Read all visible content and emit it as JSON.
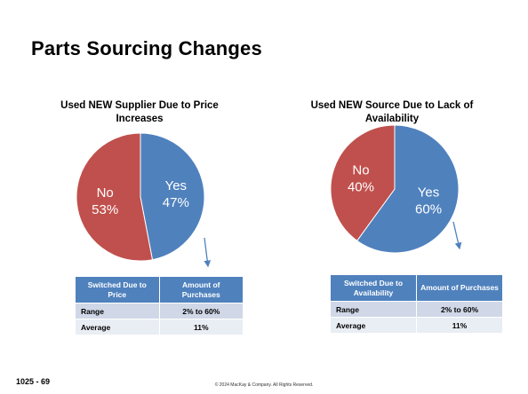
{
  "page": {
    "title": "Parts Sourcing Changes",
    "footer_left": "1025 -  69",
    "footer_center": "© 2024 MacKay & Company.  All Rights Reserved."
  },
  "colors": {
    "yes": "#4f81bd",
    "no": "#c0504d",
    "table_header": "#4f81bd"
  },
  "chart_data": [
    {
      "type": "pie",
      "title": "Used NEW Supplier Due to Price Increases",
      "slices": [
        {
          "label": "Yes",
          "value": 47,
          "display": "47%"
        },
        {
          "label": "No",
          "value": 53,
          "display": "53%"
        }
      ]
    },
    {
      "type": "pie",
      "title": "Used NEW Source Due to Lack of Availability",
      "slices": [
        {
          "label": "Yes",
          "value": 60,
          "display": "60%"
        },
        {
          "label": "No",
          "value": 40,
          "display": "40%"
        }
      ]
    }
  ],
  "tables": [
    {
      "headers": [
        "Switched Due to Price",
        "Amount of Purchases"
      ],
      "rows": [
        [
          "Range",
          "2% to 60%"
        ],
        [
          "Average",
          "11%"
        ]
      ]
    },
    {
      "headers": [
        "Switched Due to Availability",
        "Amount of Purchases"
      ],
      "rows": [
        [
          "Range",
          "2% to 60%"
        ],
        [
          "Average",
          "11%"
        ]
      ]
    }
  ]
}
